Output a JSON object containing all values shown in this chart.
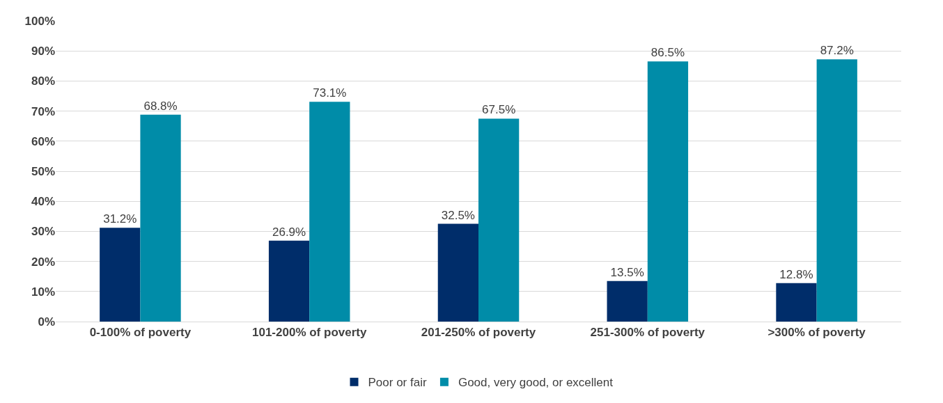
{
  "chart_data": {
    "type": "bar",
    "categories": [
      "0-100% of poverty",
      "101-200% of poverty",
      "201-250% of poverty",
      "251-300% of poverty",
      ">300% of poverty"
    ],
    "series": [
      {
        "name": "Poor or fair",
        "color": "#002d6a",
        "values": [
          31.2,
          26.9,
          32.5,
          13.5,
          12.8
        ]
      },
      {
        "name": "Good, very good, or excellent",
        "color": "#008ca8",
        "values": [
          68.8,
          73.1,
          67.5,
          86.5,
          87.2
        ]
      }
    ],
    "ylim": [
      0,
      100
    ],
    "yticks": [
      {
        "value": 0,
        "label": "0%"
      },
      {
        "value": 10,
        "label": "10%"
      },
      {
        "value": 20,
        "label": "20%"
      },
      {
        "value": 30,
        "label": "30%"
      },
      {
        "value": 40,
        "label": "40%"
      },
      {
        "value": 50,
        "label": "50%"
      },
      {
        "value": 60,
        "label": "60%"
      },
      {
        "value": 70,
        "label": "70%"
      },
      {
        "value": 80,
        "label": "80%"
      },
      {
        "value": 90,
        "label": "90%"
      },
      {
        "value": 100,
        "label": "100%"
      }
    ],
    "value_labels": [
      [
        "31.2%",
        "26.9%",
        "32.5%",
        "13.5%",
        "12.8%"
      ],
      [
        "68.8%",
        "73.1%",
        "67.5%",
        "86.5%",
        "87.2%"
      ]
    ],
    "grid": "y",
    "legend": "bottom"
  }
}
